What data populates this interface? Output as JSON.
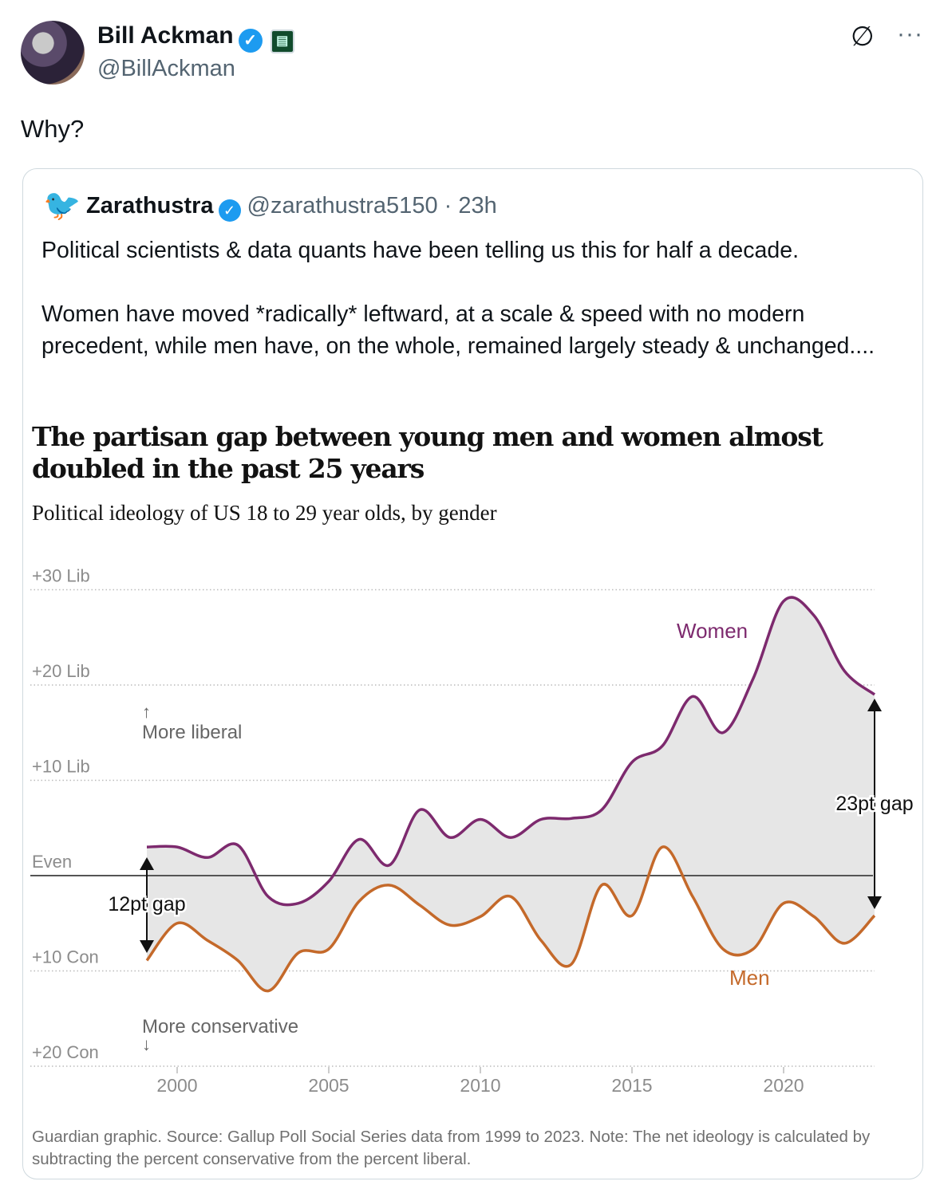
{
  "author": {
    "name": "Bill Ackman",
    "handle": "@BillAckman",
    "verified_icon": "verified-badge-icon",
    "org_icon": "affiliate-badge-icon"
  },
  "header_actions": {
    "grok_icon": "grok-icon",
    "more_icon": "more-options-icon",
    "more_label": "···"
  },
  "tweet": {
    "text": "Why?"
  },
  "quote": {
    "author_name": "Zarathustra",
    "handle": "@zarathustra5150",
    "separator": "·",
    "time": "23h",
    "paragraphs": [
      "Political scientists & data quants have been telling us this for half a decade.",
      "Women have moved *radically* leftward, at a scale & speed with no modern precedent, while men have, on the whole, remained largely steady & unchanged...."
    ]
  },
  "chart_data": {
    "type": "line",
    "title": "The partisan gap between young men and women almost doubled in the past 25 years",
    "subtitle": "Political ideology of US 18 to 29 year olds, by gender",
    "x": [
      1999,
      2000,
      2001,
      2002,
      2003,
      2004,
      2005,
      2006,
      2007,
      2008,
      2009,
      2010,
      2011,
      2012,
      2013,
      2014,
      2015,
      2016,
      2017,
      2018,
      2019,
      2020,
      2021,
      2022,
      2023
    ],
    "series": [
      {
        "name": "Women",
        "color": "#7d2a6e",
        "values": [
          3,
          3,
          1.9,
          3.2,
          -2.2,
          -2.9,
          -0.6,
          3.8,
          1.1,
          6.9,
          4,
          5.9,
          4,
          5.9,
          6,
          6.9,
          11.9,
          13.6,
          18.8,
          15,
          20.7,
          28.8,
          27.3,
          21.5,
          19
        ]
      },
      {
        "name": "Men",
        "color": "#c4692a",
        "values": [
          -8.9,
          -5,
          -6.8,
          -8.9,
          -12.1,
          -8.1,
          -7.7,
          -2.7,
          -1,
          -3.1,
          -5.2,
          -4.3,
          -2.2,
          -6.8,
          -9.3,
          -1,
          -4.2,
          3,
          -2.2,
          -7.7,
          -7.7,
          -2.9,
          -4.3,
          -7.1,
          -4.2
        ]
      }
    ],
    "y_ticks": [
      {
        "value": 30,
        "label": "+30 Lib"
      },
      {
        "value": 20,
        "label": "+20 Lib"
      },
      {
        "value": 10,
        "label": "+10 Lib"
      },
      {
        "value": 0,
        "label": "Even"
      },
      {
        "value": -10,
        "label": "+10 Con"
      },
      {
        "value": -20,
        "label": "+20 Con"
      }
    ],
    "x_ticks": [
      2000,
      2005,
      2010,
      2015,
      2020
    ],
    "ylim": [
      -20,
      30
    ],
    "xlim": [
      1999,
      2023
    ],
    "annotations": {
      "more_liberal": "More liberal",
      "more_conservative": "More conservative",
      "gap_start": "12pt gap",
      "gap_end": "23pt gap"
    },
    "grid": true,
    "fill_color": "#e6e6e6",
    "source": "Guardian graphic. Source: Gallup Poll Social Series data from 1999 to 2023. Note: The net ideology is calculated by subtracting the percent conservative from the percent liberal."
  }
}
